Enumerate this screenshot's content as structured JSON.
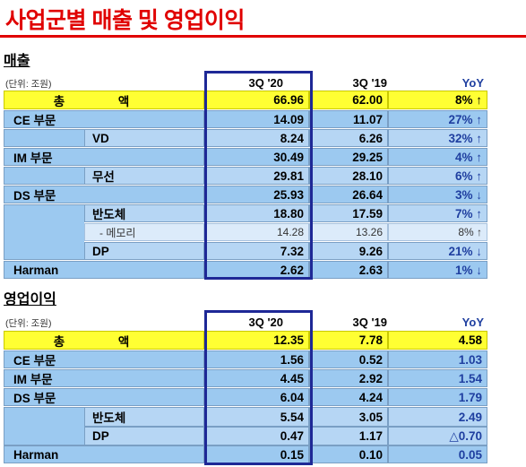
{
  "title": "사업군별 매출 및 영업이익",
  "sales": {
    "heading": "매출",
    "unit": "(단위: 조원)",
    "headers": [
      "3Q '20",
      "3Q '19",
      "YoY"
    ],
    "rows": [
      {
        "label": "총     액",
        "v1": "66.96",
        "v2": "62.00",
        "yoy": "8% ↑"
      },
      {
        "label": "CE 부문",
        "v1": "14.09",
        "v2": "11.07",
        "yoy": "27% ↑"
      },
      {
        "label": "VD",
        "v1": "8.24",
        "v2": "6.26",
        "yoy": "32% ↑"
      },
      {
        "label": "IM 부문",
        "v1": "30.49",
        "v2": "29.25",
        "yoy": "4% ↑"
      },
      {
        "label": "무선",
        "v1": "29.81",
        "v2": "28.10",
        "yoy": "6% ↑"
      },
      {
        "label": "DS 부문",
        "v1": "25.93",
        "v2": "26.64",
        "yoy": "3% ↓"
      },
      {
        "label": "반도체",
        "v1": "18.80",
        "v2": "17.59",
        "yoy": "7% ↑"
      },
      {
        "label": "- 메모리",
        "v1": "14.28",
        "v2": "13.26",
        "yoy": "8% ↑"
      },
      {
        "label": "DP",
        "v1": "7.32",
        "v2": "9.26",
        "yoy": "21% ↓"
      },
      {
        "label": "Harman",
        "v1": "2.62",
        "v2": "2.63",
        "yoy": "1% ↓"
      }
    ]
  },
  "op": {
    "heading": "영업이익",
    "unit": "(단위: 조원)",
    "headers": [
      "3Q '20",
      "3Q '19",
      "YoY"
    ],
    "rows": [
      {
        "label": "총     액",
        "v1": "12.35",
        "v2": "7.78",
        "yoy": "4.58"
      },
      {
        "label": "CE 부문",
        "v1": "1.56",
        "v2": "0.52",
        "yoy": "1.03"
      },
      {
        "label": "IM 부문",
        "v1": "4.45",
        "v2": "2.92",
        "yoy": "1.54"
      },
      {
        "label": "DS 부문",
        "v1": "6.04",
        "v2": "4.24",
        "yoy": "1.79"
      },
      {
        "label": "반도체",
        "v1": "5.54",
        "v2": "3.05",
        "yoy": "2.49"
      },
      {
        "label": "DP",
        "v1": "0.47",
        "v2": "1.17",
        "yoy": "△0.70"
      },
      {
        "label": "Harman",
        "v1": "0.15",
        "v2": "0.10",
        "yoy": "0.05"
      }
    ]
  },
  "colors": {
    "title": "#e00000",
    "row_blue": "#9cc9f0",
    "sub_blue": "#b6d6f4",
    "total_yellow": "#ffff33",
    "highlight": "#1e2896",
    "yoy_text": "#1f3fa0"
  }
}
